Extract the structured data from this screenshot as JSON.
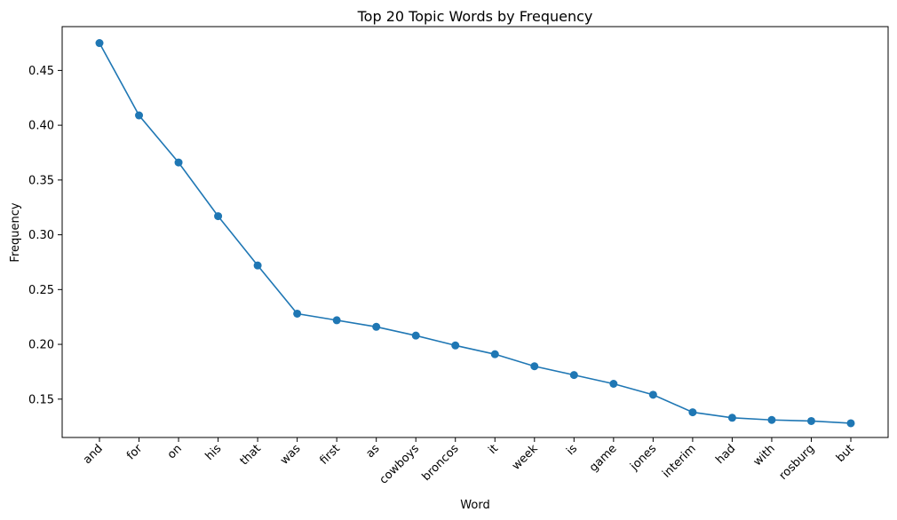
{
  "chart_data": {
    "type": "line",
    "title": "Top 20 Topic Words by Frequency",
    "xlabel": "Word",
    "ylabel": "Frequency",
    "categories": [
      "and",
      "for",
      "on",
      "his",
      "that",
      "was",
      "first",
      "as",
      "cowboys",
      "broncos",
      "it",
      "week",
      "is",
      "game",
      "jones",
      "interim",
      "had",
      "with",
      "rosburg",
      "but"
    ],
    "values": [
      0.475,
      0.409,
      0.366,
      0.317,
      0.272,
      0.228,
      0.222,
      0.216,
      0.208,
      0.199,
      0.191,
      0.18,
      0.172,
      0.164,
      0.154,
      0.138,
      0.133,
      0.131,
      0.13,
      0.128
    ],
    "ylim": [
      0.115,
      0.49
    ],
    "yticks": [
      0.15,
      0.2,
      0.25,
      0.3,
      0.35,
      0.4,
      0.45
    ],
    "ytick_labels": [
      "0.15",
      "0.20",
      "0.25",
      "0.30",
      "0.35",
      "0.40",
      "0.45"
    ],
    "grid": false,
    "marker": "circle",
    "color": "#1f77b4"
  }
}
